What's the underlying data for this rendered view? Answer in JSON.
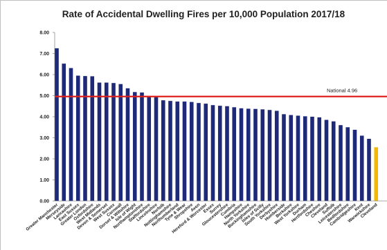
{
  "chart_data": {
    "type": "bar",
    "title": "Rate of Accidental Dwelling Fires per 10,000 Population 2017/18",
    "xlabel": "",
    "ylabel": "",
    "ylim": [
      0,
      8
    ],
    "yticks": [
      "0.00",
      "1.00",
      "2.00",
      "3.00",
      "4.00",
      "5.00",
      "6.00",
      "7.00",
      "8.00"
    ],
    "grid": false,
    "categories": [
      "Greater Manchester",
      "Merseyside",
      "Lancashire",
      "East Sussex",
      "Greater London",
      "Oxfordshire",
      "West Midlands",
      "Devon & Somerset",
      "West Sussex",
      "Cornwall",
      "Dorset & Wiltshire",
      "Isle of Wight",
      "Northamptonshire",
      "Staffordshire",
      "Lincolnshire",
      "Norfolk",
      "Nottinghamshire",
      "Northumberland",
      "Tyne & Wear",
      "Shropshire",
      "Avon",
      "Hereford & Worcester",
      "Essex",
      "Surrey",
      "Gloucestershire",
      "Cumbria",
      "Hampshire",
      "North Yorkshire",
      "Buckinghamshire",
      "Isles of Scilly",
      "South Yorkshire",
      "Derbyshire",
      "Humberside",
      "Berkshire",
      "West Yorkshire",
      "Durham",
      "Hertfordshire",
      "Cheshire",
      "Cleveland",
      "Suffolk",
      "Leicestershire",
      "Bedfordshire",
      "Cambridgeshire",
      "Kent",
      "Warwickshire",
      "Cleveland"
    ],
    "values": [
      7.25,
      6.52,
      6.31,
      5.95,
      5.93,
      5.92,
      5.62,
      5.62,
      5.6,
      5.55,
      5.35,
      5.17,
      5.15,
      4.95,
      4.93,
      4.78,
      4.75,
      4.72,
      4.72,
      4.7,
      4.65,
      4.62,
      4.55,
      4.52,
      4.5,
      4.45,
      4.4,
      4.38,
      4.37,
      4.35,
      4.32,
      4.28,
      4.12,
      4.08,
      4.05,
      4.02,
      4.0,
      3.97,
      3.85,
      3.78,
      3.6,
      3.5,
      3.38,
      3.1,
      2.95,
      2.55
    ],
    "highlight": {
      "category": "Cleveland",
      "index": 45,
      "color": "#f5b800"
    },
    "series_color": "#1e2a78",
    "reference_line": {
      "value": 4.96,
      "label": "National 4.96",
      "color": "#e0201b"
    },
    "partial_bar": {
      "value": 2.48,
      "color": "#f5b800"
    }
  }
}
